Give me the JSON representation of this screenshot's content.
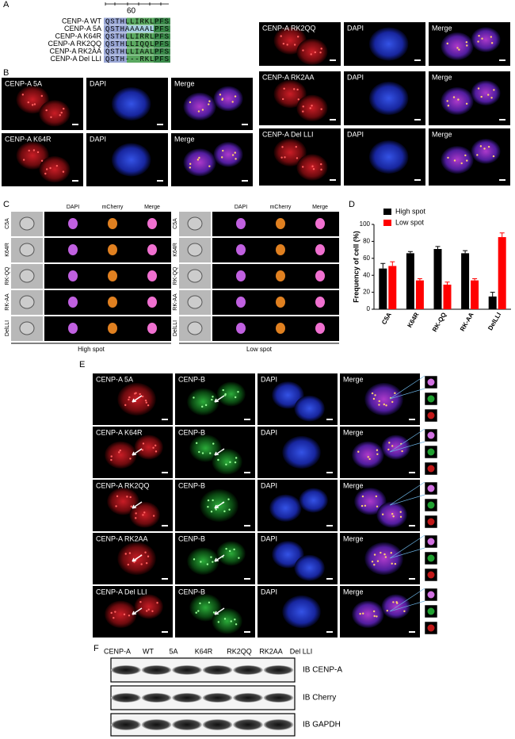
{
  "panel_labels": [
    "A",
    "B",
    "C",
    "D",
    "E",
    "F"
  ],
  "panel_a": {
    "position_label": "60",
    "rows": [
      {
        "name": "CENP-A WT",
        "sequence": "QSTHLLIRKLPFS"
      },
      {
        "name": "CENP-A 5A",
        "sequence": "QSTHAAAAALPFS"
      },
      {
        "name": "CENP-A K64R",
        "sequence": "QSTHLLIRRLPFS"
      },
      {
        "name": "CENP-A RK2QQ",
        "sequence": "QSTHLLIQQLPFS"
      },
      {
        "name": "CENP-A RK2AA",
        "sequence": "QSTHLLIAALPFS"
      },
      {
        "name": "CENP-A Del LLI",
        "sequence": "QSTH---RKLPFS"
      }
    ]
  },
  "panel_b": {
    "rows": [
      [
        "CENP-A 5A",
        "DAPI",
        "Merge"
      ],
      [
        "CENP-A K64R",
        "DAPI",
        "Merge"
      ],
      [
        "CENP-A RK2QQ",
        "DAPI",
        "Merge"
      ],
      [
        "CENP-A RK2AA",
        "DAPI",
        "Merge"
      ],
      [
        "CENP-A Del LLI",
        "DAPI",
        "Merge"
      ]
    ]
  },
  "panel_c": {
    "channels": [
      "DAPI",
      "mCherry",
      "Merge"
    ],
    "rows": [
      "C5A",
      "K64R",
      "RK-QQ",
      "RK-AA",
      "DelLLI"
    ],
    "groups": [
      "High spot",
      "Low spot"
    ]
  },
  "chart_data": {
    "type": "bar",
    "y_label": "Frequency of cell (%)",
    "categories": [
      "C5A",
      "K64R",
      "RK-QQ",
      "RK-AA",
      "DelLLI"
    ],
    "series": [
      {
        "name": "High spot",
        "color": "#000000",
        "values": [
          48,
          66,
          71,
          66,
          15
        ],
        "errors": [
          6,
          2,
          3,
          3,
          5
        ]
      },
      {
        "name": "Low spot",
        "color": "#ff0000",
        "values": [
          51,
          34,
          29,
          34,
          85
        ],
        "errors": [
          5,
          2,
          3,
          2,
          5
        ]
      }
    ],
    "ylim": [
      0,
      100
    ],
    "yticks": [
      0,
      20,
      40,
      60,
      80,
      100
    ]
  },
  "panel_e": {
    "rows": [
      [
        "CENP-A 5A",
        "CENP-B",
        "DAPI",
        "Merge"
      ],
      [
        "CENP-A K64R",
        "CENP-B",
        "DAPI",
        "Merge"
      ],
      [
        "CENP-A RK2QQ",
        "CENP-B",
        "DAPI",
        "Merge"
      ],
      [
        "CENP-A RK2AA",
        "CENP-B",
        "DAPI",
        "Merge"
      ],
      [
        "CENP-A Del LLI",
        "CENP-B",
        "DAPI",
        "Merge"
      ]
    ]
  },
  "panel_f": {
    "lanes": [
      "CENP-A",
      "WT",
      "5A",
      "K64R",
      "RK2QQ",
      "RK2AA",
      "Del LLI"
    ],
    "blots": [
      "IB CENP-A",
      "IB Cherry",
      "IB GAPDH"
    ]
  }
}
